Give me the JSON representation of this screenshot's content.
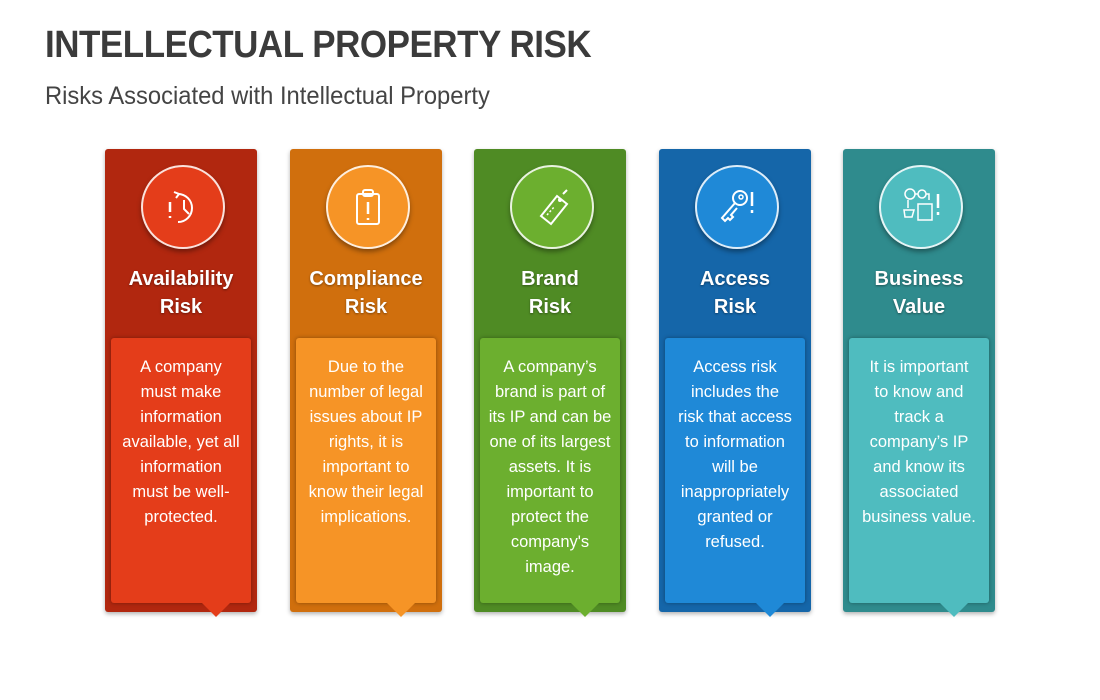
{
  "title": "INTELLECTUAL PROPERTY RISK",
  "subtitle": "Risks Associated with Intellectual Property",
  "cards": [
    {
      "icon": "clock-alert-icon",
      "outer": "#b1270f",
      "inner": "#e43d1a",
      "title": [
        "Availability",
        "Risk"
      ],
      "lines": [
        "A company",
        "must make",
        "information",
        "available, yet all",
        "information",
        "must be well-",
        "protected."
      ]
    },
    {
      "icon": "clipboard-alert-icon",
      "outer": "#d06f0d",
      "inner": "#f69426",
      "title": [
        "Compliance",
        "Risk"
      ],
      "lines": [
        "Due to the",
        "number of legal",
        "issues about IP",
        "rights, it is",
        "important to",
        "know their legal",
        "implications."
      ]
    },
    {
      "icon": "brand-tag-icon",
      "outer": "#4f8b24",
      "inner": "#6caf2f",
      "title": [
        "Brand",
        "Risk"
      ],
      "lines": [
        "A company’s",
        "brand is part of",
        "its IP and can be",
        "one of its largest",
        "assets. It is",
        "important to",
        "protect the",
        "company's",
        "image."
      ]
    },
    {
      "icon": "key-alert-icon",
      "outer": "#1566a9",
      "inner": "#1f89d7",
      "title": [
        "Access",
        "Risk"
      ],
      "lines": [
        "Access risk",
        "includes the",
        "risk that access",
        "to information",
        "will be",
        "inappropriately",
        "granted or",
        "refused."
      ]
    },
    {
      "icon": "business-value-icon",
      "outer": "#2f8b8d",
      "inner": "#4fbcbf",
      "title": [
        "Business",
        "Value"
      ],
      "lines": [
        "It is important",
        "to know and",
        "track a",
        "company’s IP",
        "and know its",
        "associated",
        "business value."
      ]
    }
  ]
}
